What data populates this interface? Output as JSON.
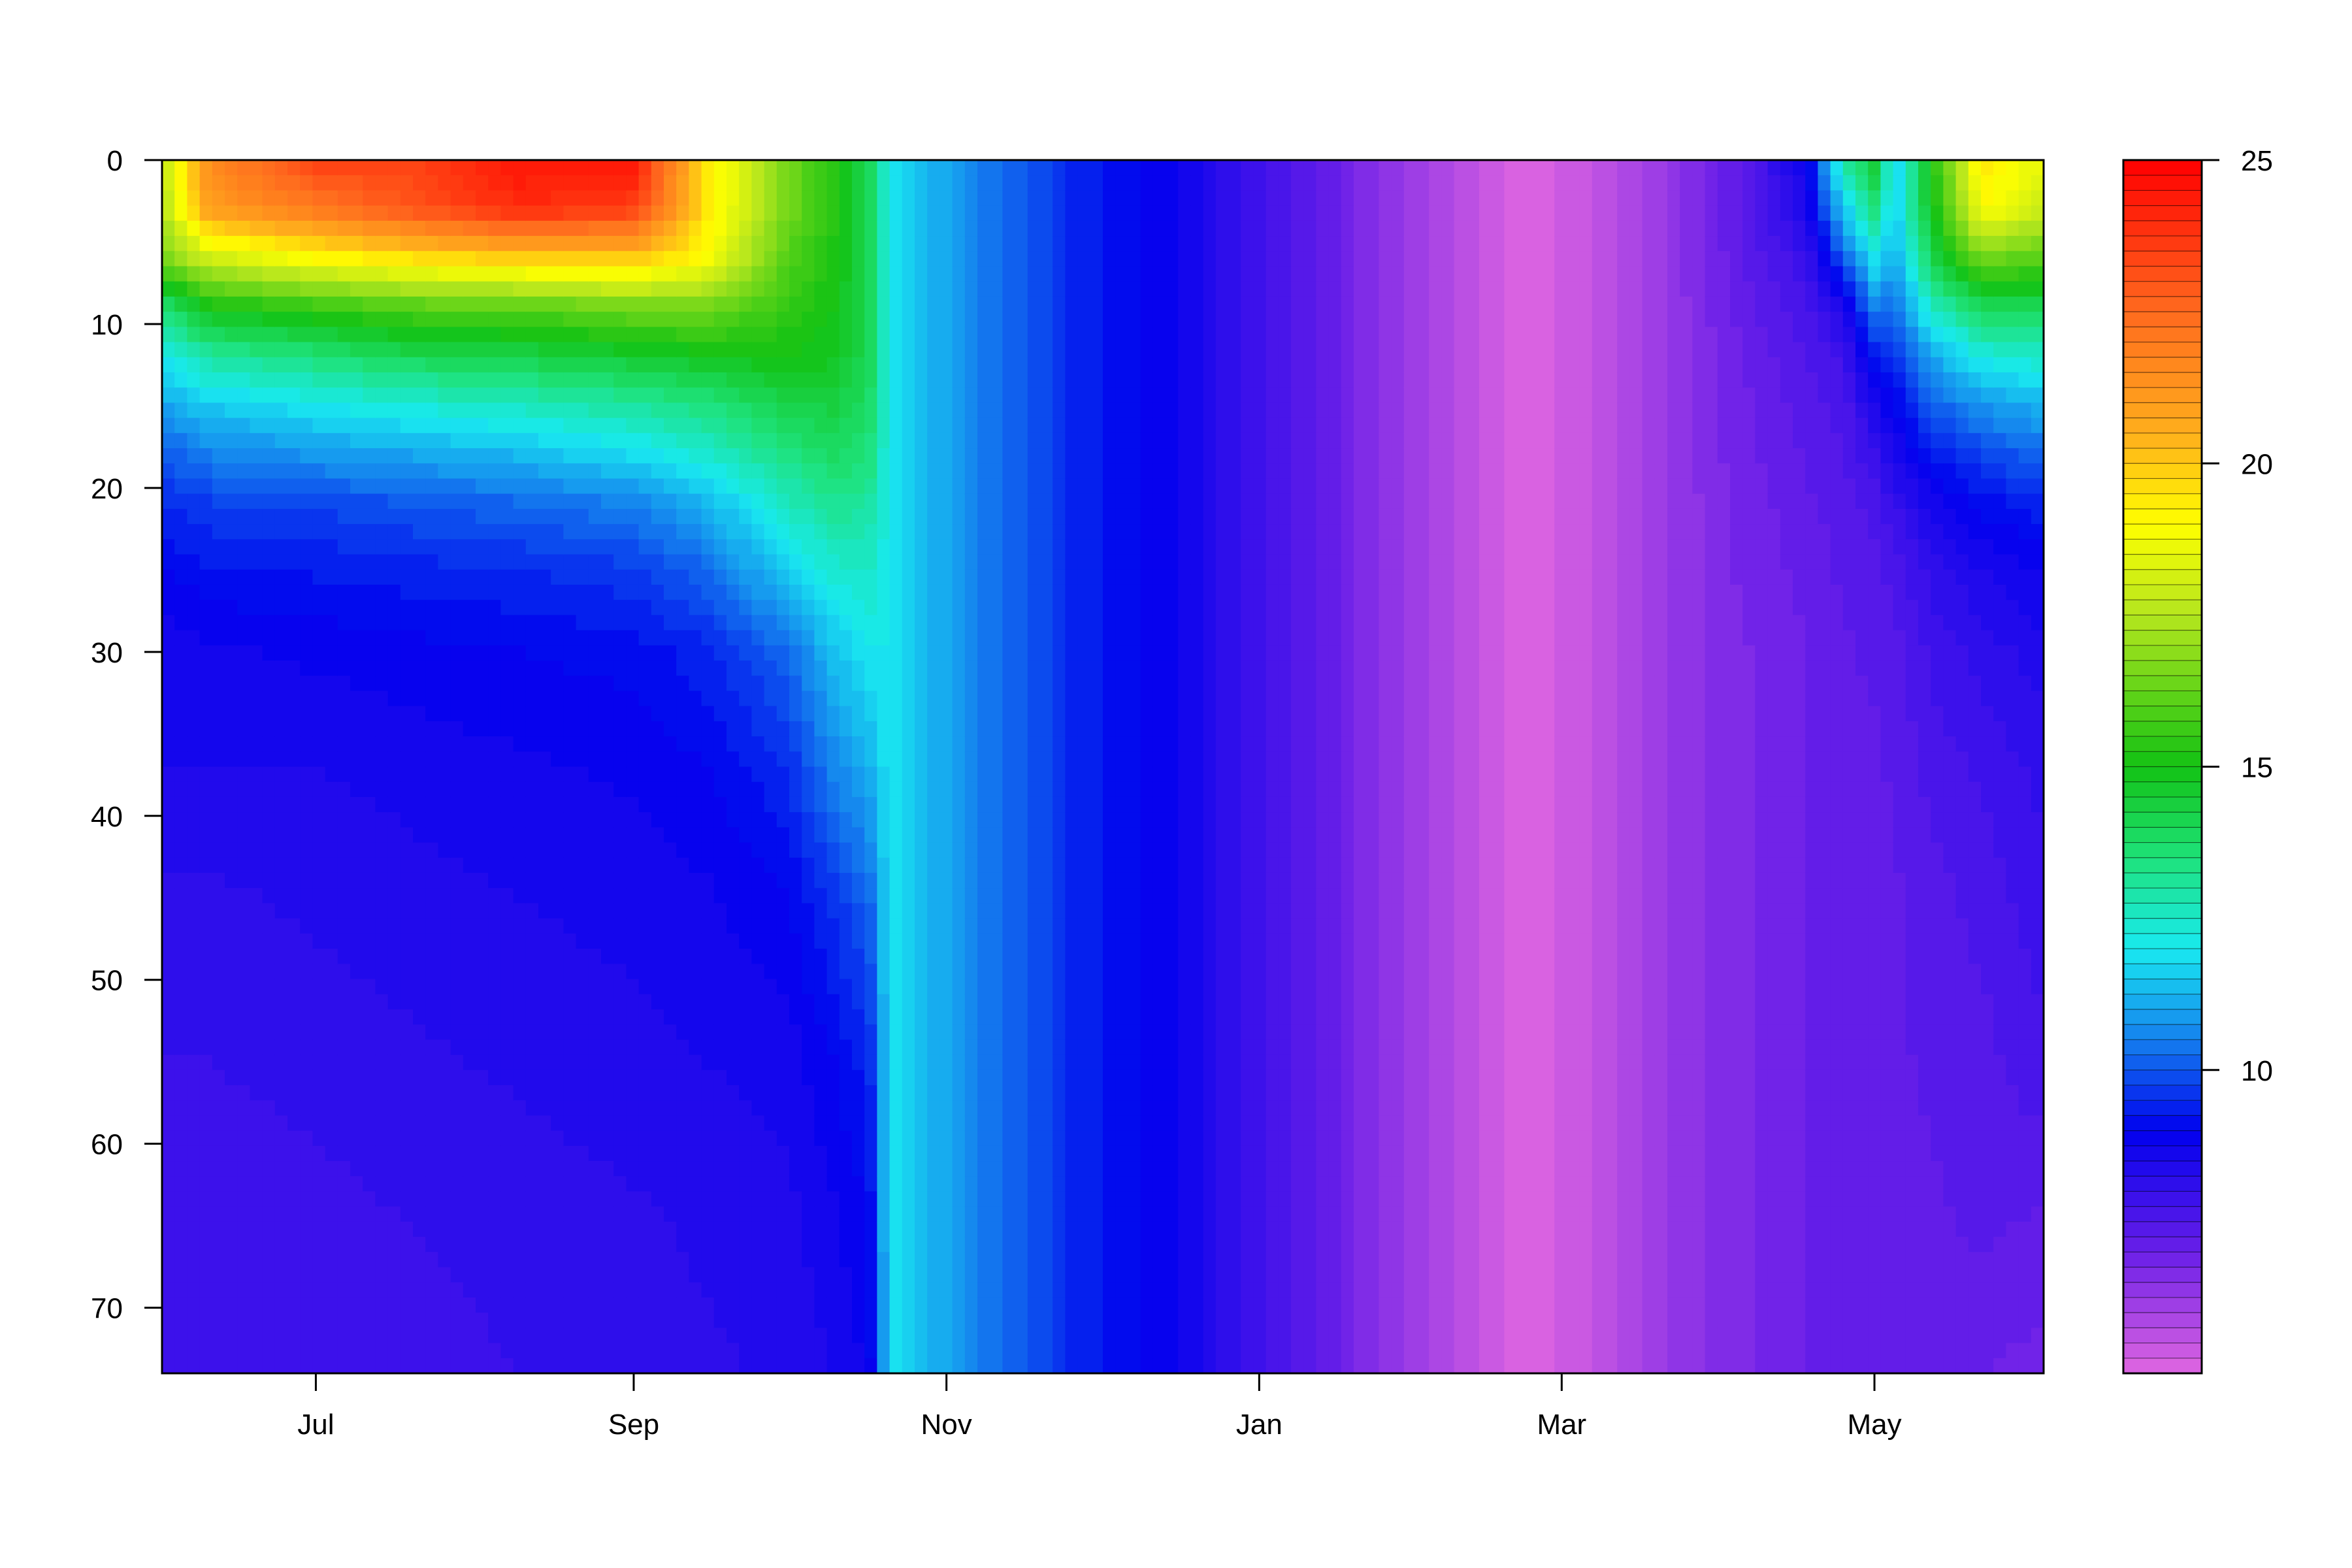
{
  "chart_data": {
    "type": "heatmap",
    "title": "",
    "xlabel": "",
    "ylabel": "",
    "x_tick_labels": [
      "Jul",
      "Sep",
      "Nov",
      "Jan",
      "Mar",
      "May"
    ],
    "x_tick_dates": [
      "2012-07-01",
      "2012-09-01",
      "2012-11-01",
      "2013-01-01",
      "2013-03-01",
      "2013-05-01"
    ],
    "xlim": [
      "2012-06-01",
      "2013-06-03"
    ],
    "y_ticks": [
      0,
      10,
      20,
      30,
      40,
      50,
      60,
      70
    ],
    "ylim": [
      74,
      0
    ],
    "y_reversed": true,
    "colorbar": {
      "ticks": [
        10,
        15,
        20,
        25
      ],
      "range": [
        5.0,
        25
      ],
      "levels": 80,
      "stops": [
        {
          "value": 5.0,
          "color": "#e066e0"
        },
        {
          "value": 7.0,
          "color": "#6a1fe8"
        },
        {
          "value": 9.0,
          "color": "#0000ee"
        },
        {
          "value": 10.5,
          "color": "#1580ee"
        },
        {
          "value": 12.0,
          "color": "#19eaf0"
        },
        {
          "value": 13.5,
          "color": "#1ee27a"
        },
        {
          "value": 15.0,
          "color": "#13c213"
        },
        {
          "value": 17.5,
          "color": "#b4e61e"
        },
        {
          "value": 19.0,
          "color": "#ffff00"
        },
        {
          "value": 20.5,
          "color": "#ffae1c"
        },
        {
          "value": 22.5,
          "color": "#ff6a1e"
        },
        {
          "value": 25,
          "color": "#ff0000"
        }
      ]
    },
    "depths": [
      0,
      3,
      6,
      9,
      12,
      15,
      18,
      21,
      25,
      30,
      37,
      45,
      55,
      65,
      74
    ],
    "series": [
      {
        "date": "2012-06-01",
        "values": [
          17.5,
          17.5,
          16.5,
          13.5,
          12,
          11,
          10,
          9.5,
          9,
          8.5,
          8.5,
          8.2,
          8.0,
          7.8,
          7.8
        ]
      },
      {
        "date": "2012-06-10",
        "values": [
          21.5,
          21,
          18,
          15,
          13,
          11.5,
          10.5,
          9.7,
          9.2,
          8.7,
          8.5,
          8.2,
          8.0,
          7.8,
          7.8
        ]
      },
      {
        "date": "2012-07-01",
        "values": [
          23.5,
          22,
          19,
          15.5,
          13.5,
          12,
          10.8,
          9.8,
          9.3,
          8.8,
          8.5,
          8.3,
          8.1,
          7.9,
          7.8
        ]
      },
      {
        "date": "2012-07-20",
        "values": [
          23.5,
          23,
          19.5,
          16,
          14,
          12.3,
          11,
          10,
          9.4,
          8.9,
          8.6,
          8.4,
          8.2,
          8.0,
          7.9
        ]
      },
      {
        "date": "2012-08-10",
        "values": [
          24.5,
          24,
          20,
          16,
          14.2,
          12.6,
          11.3,
          10.2,
          9.5,
          9.0,
          8.7,
          8.5,
          8.3,
          8.1,
          8.0
        ]
      },
      {
        "date": "2012-09-01",
        "values": [
          24.5,
          23.5,
          20,
          16.5,
          14.5,
          13,
          11.8,
          10.5,
          9.7,
          9.1,
          8.8,
          8.6,
          8.4,
          8.2,
          8.1
        ]
      },
      {
        "date": "2012-09-15",
        "values": [
          19.5,
          19.5,
          19,
          16.5,
          14.8,
          13.4,
          12.4,
          11.2,
          10.2,
          9.4,
          9.0,
          8.7,
          8.5,
          8.3,
          8.2
        ]
      },
      {
        "date": "2012-10-01",
        "values": [
          16.5,
          16.5,
          16,
          15.5,
          15,
          14.2,
          13.4,
          12.6,
          11.6,
          10.2,
          9.5,
          9.0,
          8.6,
          8.4,
          8.3
        ]
      },
      {
        "date": "2012-10-10",
        "values": [
          15.3,
          15.3,
          15.2,
          15,
          14.8,
          14.3,
          13.8,
          13.2,
          12.4,
          11.4,
          10.6,
          9.6,
          9.0,
          8.7,
          8.5
        ]
      },
      {
        "date": "2012-10-17",
        "values": [
          14,
          14,
          14,
          14,
          14,
          13.8,
          13.5,
          13,
          12.5,
          12,
          11.2,
          10.2,
          9.4,
          9.0,
          8.8
        ]
      },
      {
        "date": "2012-10-21",
        "values": [
          12,
          12,
          12,
          12,
          12,
          12,
          12,
          12,
          12,
          12,
          12,
          12,
          12,
          12,
          12
        ]
      },
      {
        "date": "2012-10-28",
        "values": [
          11.3,
          11.3,
          11.3,
          11.3,
          11.3,
          11.3,
          11.3,
          11.3,
          11.3,
          11.3,
          11.3,
          11.3,
          11.3,
          11.3,
          11.3
        ]
      },
      {
        "date": "2012-11-08",
        "values": [
          10.5,
          10.5,
          10.5,
          10.5,
          10.5,
          10.5,
          10.5,
          10.5,
          10.5,
          10.5,
          10.5,
          10.5,
          10.5,
          10.5,
          10.5
        ]
      },
      {
        "date": "2012-11-25",
        "values": [
          9.5,
          9.5,
          9.5,
          9.5,
          9.5,
          9.5,
          9.5,
          9.5,
          9.5,
          9.5,
          9.5,
          9.5,
          9.5,
          9.5,
          9.5
        ]
      },
      {
        "date": "2012-12-15",
        "values": [
          8.8,
          8.8,
          8.8,
          8.8,
          8.8,
          8.8,
          8.8,
          8.8,
          8.8,
          8.8,
          8.8,
          8.8,
          8.8,
          8.8,
          8.8
        ]
      },
      {
        "date": "2013-01-05",
        "values": [
          7.6,
          7.6,
          7.6,
          7.6,
          7.6,
          7.6,
          7.6,
          7.6,
          7.6,
          7.6,
          7.6,
          7.6,
          7.6,
          7.6,
          7.6
        ]
      },
      {
        "date": "2013-01-25",
        "values": [
          6.5,
          6.5,
          6.5,
          6.5,
          6.5,
          6.5,
          6.5,
          6.5,
          6.5,
          6.5,
          6.5,
          6.5,
          6.5,
          6.5,
          6.5
        ]
      },
      {
        "date": "2013-02-10",
        "values": [
          5.7,
          5.7,
          5.7,
          5.7,
          5.7,
          5.7,
          5.7,
          5.7,
          5.7,
          5.7,
          5.7,
          5.7,
          5.7,
          5.7,
          5.7
        ]
      },
      {
        "date": "2013-02-21",
        "values": [
          5.1,
          5.1,
          5.1,
          5.1,
          5.1,
          5.1,
          5.1,
          5.1,
          5.1,
          5.1,
          5.1,
          5.1,
          5.1,
          5.1,
          5.1
        ]
      },
      {
        "date": "2013-03-05",
        "values": [
          5.4,
          5.4,
          5.4,
          5.4,
          5.4,
          5.4,
          5.4,
          5.4,
          5.4,
          5.4,
          5.4,
          5.4,
          5.4,
          5.4,
          5.4
        ]
      },
      {
        "date": "2013-03-20",
        "values": [
          6.2,
          6.2,
          6.2,
          6.2,
          6.2,
          6.2,
          6.2,
          6.2,
          6.2,
          6.2,
          6.2,
          6.2,
          6.2,
          6.2,
          6.2
        ]
      },
      {
        "date": "2013-04-05",
        "values": [
          7.3,
          7.3,
          7.2,
          7.1,
          7.0,
          6.9,
          6.9,
          6.8,
          6.8,
          6.7,
          6.7,
          6.7,
          6.7,
          6.7,
          6.7
        ]
      },
      {
        "date": "2013-04-18",
        "values": [
          8.8,
          8.5,
          8.0,
          7.7,
          7.5,
          7.4,
          7.3,
          7.2,
          7.1,
          7.0,
          7.0,
          7.0,
          7.0,
          7.0,
          7.0
        ]
      },
      {
        "date": "2013-04-25",
        "values": [
          13,
          11.5,
          10,
          8.5,
          7.8,
          7.6,
          7.5,
          7.4,
          7.3,
          7.2,
          7.2,
          7.1,
          7.1,
          7.1,
          7.1
        ]
      },
      {
        "date": "2013-05-01",
        "values": [
          14.5,
          13.5,
          12,
          10.5,
          9.3,
          8.5,
          8.0,
          7.6,
          7.4,
          7.3,
          7.2,
          7.2,
          7.1,
          7.1,
          7.1
        ]
      },
      {
        "date": "2013-05-05",
        "values": [
          11.5,
          11.5,
          11,
          10.2,
          9.5,
          9,
          8.5,
          8.0,
          7.6,
          7.4,
          7.3,
          7.2,
          7.2,
          7.1,
          7.1
        ]
      },
      {
        "date": "2013-05-12",
        "values": [
          15,
          14.8,
          14,
          12.5,
          11,
          10,
          9.2,
          8.6,
          8.1,
          7.8,
          7.6,
          7.4,
          7.3,
          7.2,
          7.2
        ]
      },
      {
        "date": "2013-05-22",
        "values": [
          19.5,
          19,
          16.5,
          14,
          12.2,
          10.8,
          9.8,
          9.1,
          8.5,
          8.1,
          7.8,
          7.6,
          7.4,
          7.3,
          7.0
        ]
      },
      {
        "date": "2013-06-03",
        "values": [
          18.5,
          18,
          16,
          14,
          12.5,
          11.2,
          10.2,
          9.4,
          8.8,
          8.4,
          8.1,
          7.9,
          7.7,
          7.2,
          6.9
        ]
      }
    ]
  }
}
